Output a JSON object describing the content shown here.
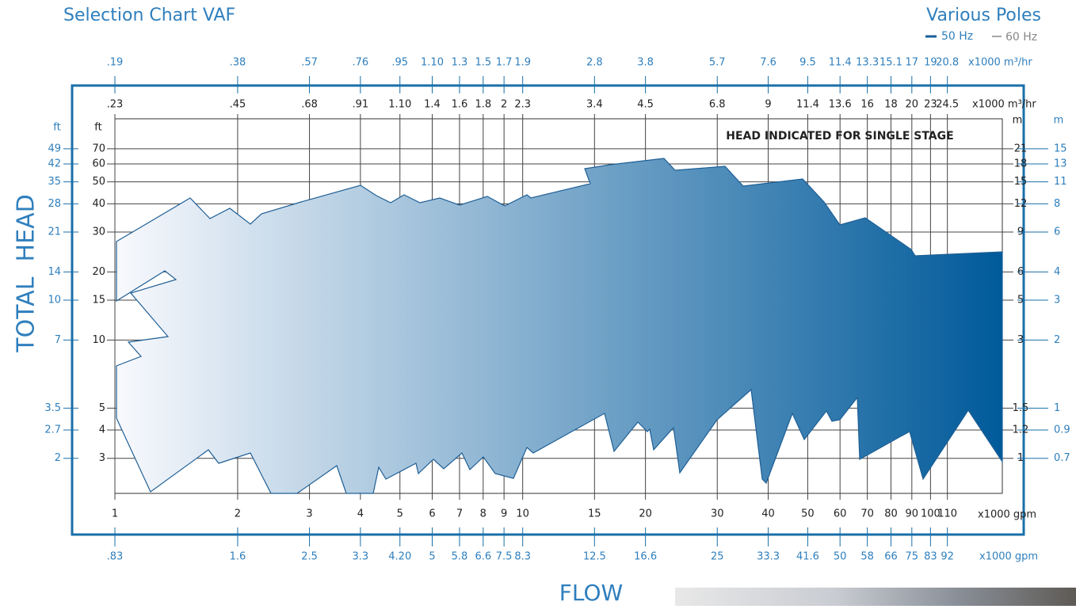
{
  "header": {
    "title": "Selection Chart VAF",
    "subtitle": "Various Poles",
    "legend": [
      "50 Hz",
      "60 Hz"
    ],
    "legend_colors": [
      "#1a5f99",
      "#888888"
    ]
  },
  "chart_data": {
    "type": "envelope",
    "annotation": "HEAD INDICATED FOR SINGLE STAGE",
    "xlabel": "FLOW",
    "ylabel": "TOTAL  HEAD",
    "xscale": "log",
    "yscale": "log",
    "xlim": [
      1,
      150
    ],
    "ylim": [
      2.1,
      95
    ],
    "xticks": [
      1,
      2,
      3,
      4,
      5,
      6,
      7,
      8,
      9,
      10,
      15,
      20,
      30,
      40,
      50,
      60,
      70,
      80,
      90,
      100,
      110
    ],
    "xunit": "x1000 gpm",
    "x_top_50hz": {
      "unit": "x1000 m³/hr",
      "labels": [
        ".23",
        ".45",
        ".68",
        ".91",
        "1.10",
        "1.4",
        "1.6",
        "1.8",
        "2",
        "2.3",
        "3.4",
        "4.5",
        "6.8",
        "9",
        "11.4",
        "13.6",
        "16",
        "18",
        "20",
        "23",
        "24.5"
      ]
    },
    "x_top_60hz": {
      "unit": "x1000 m³/hr",
      "labels": [
        ".19",
        ".38",
        ".57",
        ".76",
        ".95",
        "1.10",
        "1.3",
        "1.5",
        "1.7",
        "1.9",
        "2.8",
        "3.8",
        "5.7",
        "7.6",
        "9.5",
        "11.4",
        "13.3",
        "15.1",
        "17",
        "19",
        "20.8"
      ]
    },
    "x_bottom_60hz": {
      "unit": "x1000 gpm",
      "labels": [
        ".83",
        "1.6",
        "2.5",
        "3.3",
        "4.20",
        "5",
        "5.8",
        "6.6",
        "7.5",
        "8.3",
        "12.5",
        "16.6",
        "25",
        "33.3",
        "41.6",
        "50",
        "58",
        "66",
        "75",
        "83",
        "92"
      ]
    },
    "yticks": [
      3,
      4,
      5,
      10,
      15,
      20,
      30,
      40,
      50,
      60,
      70
    ],
    "yunit": "ft",
    "y_left_60hz": {
      "unit": "ft",
      "labels": [
        "2",
        "2.7",
        "3.5",
        "7",
        "10",
        "14",
        "21",
        "28",
        "35",
        "42",
        "49"
      ]
    },
    "y_right_50hz": {
      "unit": "m",
      "labels": [
        "1",
        "1.2",
        "1.5",
        "3",
        "5",
        "6",
        "9",
        "12",
        "15",
        "18",
        "21"
      ]
    },
    "y_right_60hz": {
      "unit": "m",
      "labels": [
        "0.7",
        "0.9",
        "1",
        "2",
        "3",
        "4",
        "6",
        "8",
        "11",
        "13",
        "15"
      ]
    },
    "fill_colors": [
      "#f8f9fd",
      "#005a9a"
    ]
  }
}
